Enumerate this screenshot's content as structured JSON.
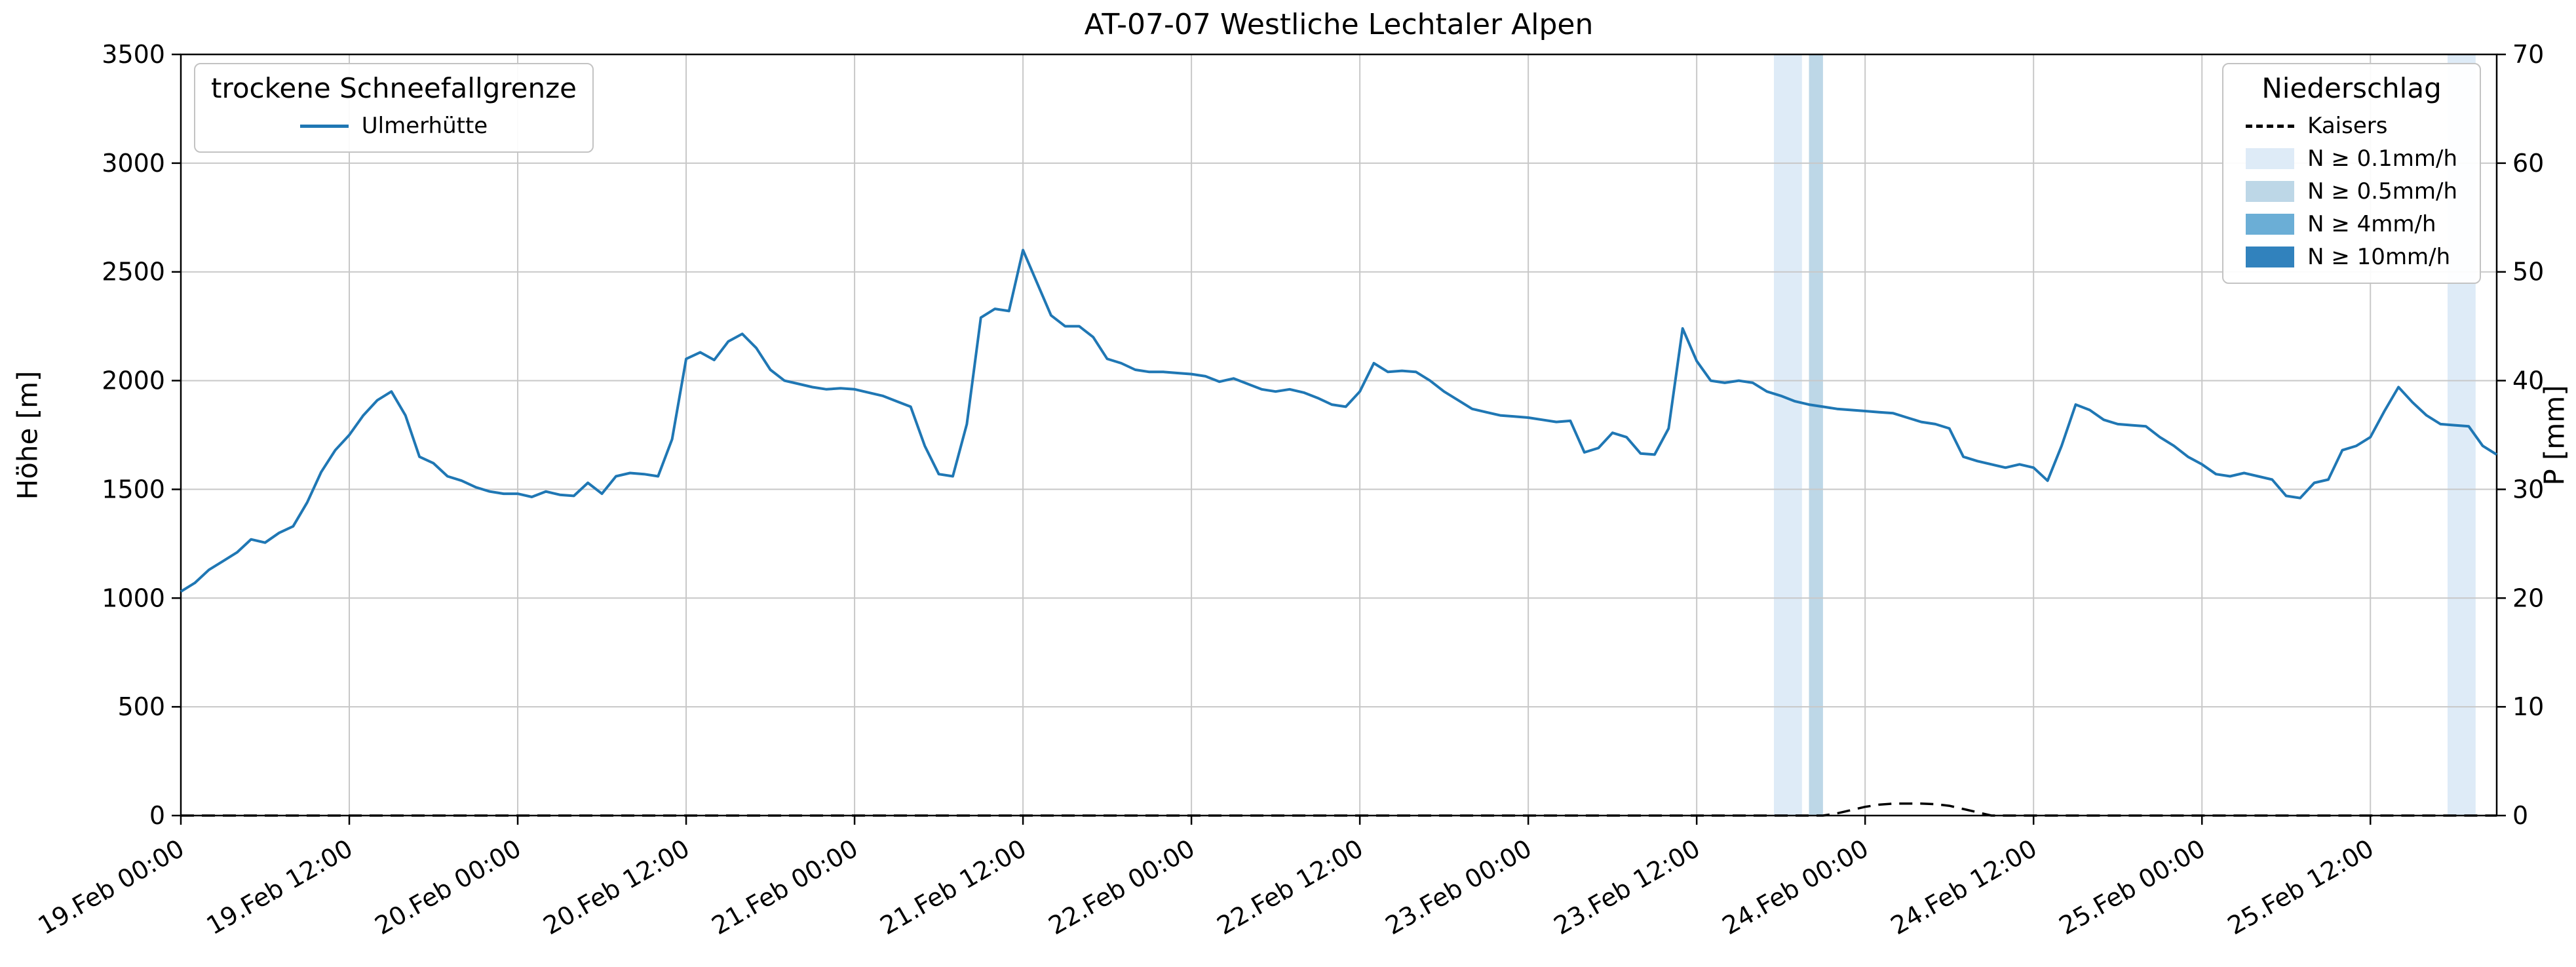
{
  "title": "AT-07-07 Westliche Lechtaler Alpen",
  "axes": {
    "y_left": {
      "label": "Höhe [m]",
      "min": 0,
      "max": 3500,
      "ticks": [
        0,
        500,
        1000,
        1500,
        2000,
        2500,
        3000,
        3500
      ]
    },
    "y_right": {
      "label": "P [mm]",
      "min": 0,
      "max": 70,
      "ticks": [
        0,
        10,
        20,
        30,
        40,
        50,
        60,
        70
      ]
    },
    "x": {
      "ticks": [
        {
          "hour": 0,
          "label": "19.Feb 00:00"
        },
        {
          "hour": 12,
          "label": "19.Feb 12:00"
        },
        {
          "hour": 24,
          "label": "20.Feb 00:00"
        },
        {
          "hour": 36,
          "label": "20.Feb 12:00"
        },
        {
          "hour": 48,
          "label": "21.Feb 00:00"
        },
        {
          "hour": 60,
          "label": "21.Feb 12:00"
        },
        {
          "hour": 72,
          "label": "22.Feb 00:00"
        },
        {
          "hour": 84,
          "label": "22.Feb 12:00"
        },
        {
          "hour": 96,
          "label": "23.Feb 00:00"
        },
        {
          "hour": 108,
          "label": "23.Feb 12:00"
        },
        {
          "hour": 120,
          "label": "24.Feb 00:00"
        },
        {
          "hour": 132,
          "label": "24.Feb 12:00"
        },
        {
          "hour": 144,
          "label": "25.Feb 00:00"
        },
        {
          "hour": 156,
          "label": "25.Feb 12:00"
        }
      ]
    }
  },
  "legend_snowline": {
    "title": "trockene Schneefallgrenze",
    "entries": [
      {
        "label": "Ulmerhütte",
        "color": "#1f77b4",
        "style": "solid"
      }
    ]
  },
  "legend_precip": {
    "title": "Niederschlag",
    "entries": [
      {
        "label": "Kaisers",
        "color": "#000000",
        "style": "dashed"
      },
      {
        "label": "N ≥ 0.1mm/h",
        "color": "#deebf7",
        "style": "patch"
      },
      {
        "label": "N ≥ 0.5mm/h",
        "color": "#bdd7e7",
        "style": "patch"
      },
      {
        "label": "N ≥ 4mm/h",
        "color": "#6baed6",
        "style": "patch"
      },
      {
        "label": "N ≥ 10mm/h",
        "color": "#3182bd",
        "style": "patch"
      }
    ]
  },
  "chart_data": {
    "type": "line",
    "title": "AT-07-07 Westliche Lechtaler Alpen",
    "xlabel": "",
    "ylabel_left": "Höhe [m]",
    "ylabel_right": "P [mm]",
    "x_start_label": "19.Feb 00:00",
    "x_step_hours": 1,
    "x_max_hours": 165,
    "ylim_left": [
      0,
      3500
    ],
    "ylim_right": [
      0,
      70
    ],
    "grid": true,
    "grid_color": "#c8c8c8",
    "background": "#ffffff",
    "legend_positions": {
      "snowline": "upper left",
      "precip": "upper right"
    },
    "series": [
      {
        "name": "Ulmerhütte",
        "axis": "left",
        "unit": "m",
        "color": "#1f77b4",
        "style": "solid",
        "width": 4,
        "values": [
          1030,
          1070,
          1130,
          1170,
          1210,
          1270,
          1255,
          1300,
          1330,
          1440,
          1580,
          1680,
          1750,
          1840,
          1910,
          1950,
          1840,
          1650,
          1620,
          1560,
          1540,
          1510,
          1490,
          1480,
          1480,
          1465,
          1490,
          1475,
          1470,
          1530,
          1480,
          1560,
          1575,
          1570,
          1560,
          1730,
          2100,
          2130,
          2095,
          2180,
          2215,
          2150,
          2050,
          2000,
          1985,
          1970,
          1960,
          1965,
          1960,
          1945,
          1930,
          1905,
          1880,
          1700,
          1570,
          1560,
          1800,
          2290,
          2330,
          2320,
          2600,
          2450,
          2300,
          2250,
          2250,
          2200,
          2100,
          2080,
          2050,
          2040,
          2040,
          2035,
          2030,
          2020,
          1995,
          2010,
          1985,
          1960,
          1950,
          1960,
          1945,
          1920,
          1890,
          1880,
          1950,
          2080,
          2040,
          2045,
          2040,
          2000,
          1950,
          1910,
          1870,
          1855,
          1840,
          1835,
          1830,
          1820,
          1810,
          1815,
          1670,
          1690,
          1760,
          1740,
          1665,
          1660,
          1780,
          2240,
          2090,
          2000,
          1990,
          2000,
          1990,
          1950,
          1930,
          1905,
          1890,
          1880,
          1870,
          1865,
          1860,
          1855,
          1850,
          1830,
          1810,
          1800,
          1780,
          1650,
          1630,
          1615,
          1600,
          1615,
          1600,
          1540,
          1700,
          1890,
          1865,
          1820,
          1800,
          1795,
          1790,
          1740,
          1700,
          1650,
          1615,
          1570,
          1560,
          1575,
          1560,
          1545,
          1470,
          1460,
          1530,
          1545,
          1680,
          1700,
          1740,
          1860,
          1970,
          1900,
          1840,
          1800,
          1795,
          1790,
          1700,
          1660
        ]
      },
      {
        "name": "Kaisers",
        "axis": "right",
        "unit": "mm",
        "color": "#000000",
        "style": "dashed",
        "width": 3.5,
        "values_sparse": {
          "length": 166,
          "default": 0,
          "nonzero": {
            "118": 0.2,
            "119": 0.5,
            "120": 0.8,
            "121": 1.0,
            "122": 1.1,
            "123": 1.1,
            "124": 1.1,
            "125": 1.05,
            "126": 0.9,
            "127": 0.6,
            "128": 0.3
          }
        }
      }
    ],
    "precip_bands": [
      {
        "start_hour": 113.5,
        "end_hour": 115.5,
        "level": "N ≥ 0.1mm/h",
        "color": "#deebf7"
      },
      {
        "start_hour": 116,
        "end_hour": 117,
        "level": "N ≥ 0.5mm/h",
        "color": "#bdd7e7"
      },
      {
        "start_hour": 161.5,
        "end_hour": 163.5,
        "level": "N ≥ 0.1mm/h",
        "color": "#deebf7"
      }
    ]
  }
}
